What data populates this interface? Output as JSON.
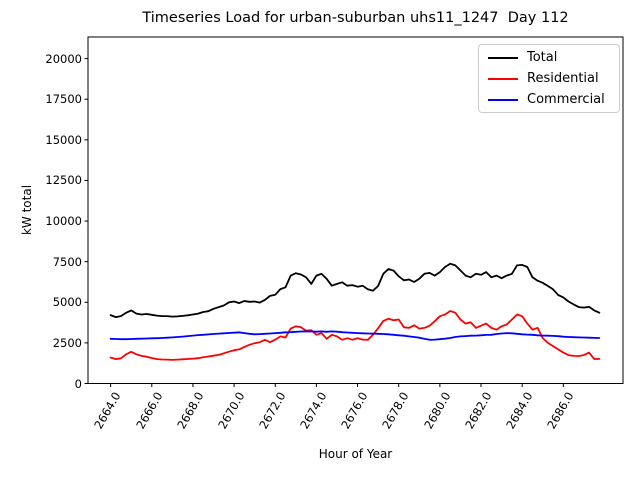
{
  "figure": {
    "title": "Timeseries Load for urban-suburban uhs11_1247  Day 112",
    "xlabel": "Hour of Year",
    "ylabel": "kW total"
  },
  "legend": {
    "entries": [
      "Total",
      "Residential",
      "Commercial"
    ]
  },
  "chart_data": {
    "type": "line",
    "title": "Timeseries Load for urban-suburban uhs11_1247  Day 112",
    "xlabel": "Hour of Year",
    "ylabel": "kW total",
    "grid": false,
    "legend_position": "upper right",
    "xlim": [
      2662.9,
      2688.9
    ],
    "ylim": [
      0,
      21330
    ],
    "xticks": {
      "values": [
        2664,
        2666,
        2668,
        2670,
        2672,
        2674,
        2676,
        2678,
        2680,
        2682,
        2684,
        2686
      ],
      "labels": [
        "2664.0",
        "2666.0",
        "2668.0",
        "2670.0",
        "2672.0",
        "2674.0",
        "2676.0",
        "2678.0",
        "2680.0",
        "2682.0",
        "2684.0",
        "2686.0"
      ]
    },
    "yticks": {
      "values": [
        0,
        2500,
        5000,
        7500,
        10000,
        12500,
        15000,
        17500,
        20000
      ],
      "labels": [
        "0",
        "2500",
        "5000",
        "7500",
        "10000",
        "12500",
        "15000",
        "17500",
        "20000"
      ]
    },
    "x": [
      2664.0,
      2664.25,
      2664.5,
      2664.75,
      2665.0,
      2665.25,
      2665.5,
      2665.75,
      2666.0,
      2666.25,
      2666.5,
      2666.75,
      2667.0,
      2667.25,
      2667.5,
      2667.75,
      2668.0,
      2668.25,
      2668.5,
      2668.75,
      2669.0,
      2669.25,
      2669.5,
      2669.75,
      2670.0,
      2670.25,
      2670.5,
      2670.75,
      2671.0,
      2671.25,
      2671.5,
      2671.75,
      2672.0,
      2672.25,
      2672.5,
      2672.75,
      2673.0,
      2673.25,
      2673.5,
      2673.75,
      2674.0,
      2674.25,
      2674.5,
      2674.75,
      2675.0,
      2675.25,
      2675.5,
      2675.75,
      2676.0,
      2676.25,
      2676.5,
      2676.75,
      2677.0,
      2677.25,
      2677.5,
      2677.75,
      2678.0,
      2678.25,
      2678.5,
      2678.75,
      2679.0,
      2679.25,
      2679.5,
      2679.75,
      2680.0,
      2680.25,
      2680.5,
      2680.75,
      2681.0,
      2681.25,
      2681.5,
      2681.75,
      2682.0,
      2682.25,
      2682.5,
      2682.75,
      2683.0,
      2683.25,
      2683.5,
      2683.75,
      2684.0,
      2684.25,
      2684.5,
      2684.75,
      2685.0,
      2685.25,
      2685.5,
      2685.75,
      2686.0,
      2686.25,
      2686.5,
      2686.75,
      2687.0,
      2687.25,
      2687.5,
      2687.75
    ],
    "series": [
      {
        "name": "Total",
        "color": "#000000",
        "values": [
          4210,
          4090,
          4150,
          4350,
          4500,
          4300,
          4250,
          4280,
          4230,
          4180,
          4150,
          4150,
          4120,
          4130,
          4160,
          4200,
          4250,
          4300,
          4400,
          4450,
          4600,
          4700,
          4800,
          5000,
          5050,
          4950,
          5080,
          5030,
          5050,
          4980,
          5150,
          5390,
          5460,
          5810,
          5920,
          6640,
          6790,
          6710,
          6540,
          6130,
          6640,
          6750,
          6440,
          6020,
          6130,
          6230,
          6020,
          6060,
          5960,
          6020,
          5800,
          5710,
          6000,
          6750,
          7050,
          6950,
          6600,
          6350,
          6400,
          6250,
          6450,
          6750,
          6810,
          6640,
          6860,
          7170,
          7375,
          7270,
          6960,
          6640,
          6540,
          6750,
          6690,
          6860,
          6540,
          6640,
          6480,
          6640,
          6750,
          7270,
          7300,
          7170,
          6540,
          6330,
          6200,
          6000,
          5800,
          5450,
          5300,
          5050,
          4870,
          4700,
          4670,
          4720,
          4500,
          4360
        ]
      },
      {
        "name": "Residential",
        "color": "#ff0000",
        "values": [
          1600,
          1500,
          1550,
          1800,
          1950,
          1800,
          1700,
          1650,
          1570,
          1500,
          1480,
          1470,
          1450,
          1470,
          1490,
          1510,
          1530,
          1560,
          1610,
          1660,
          1710,
          1760,
          1860,
          1960,
          2050,
          2100,
          2250,
          2380,
          2480,
          2540,
          2690,
          2540,
          2700,
          2900,
          2830,
          3380,
          3520,
          3460,
          3250,
          3290,
          3000,
          3100,
          2750,
          3000,
          2900,
          2690,
          2790,
          2690,
          2790,
          2700,
          2690,
          3000,
          3400,
          3850,
          3980,
          3890,
          3940,
          3460,
          3420,
          3580,
          3380,
          3420,
          3560,
          3830,
          4140,
          4250,
          4460,
          4360,
          3940,
          3690,
          3770,
          3420,
          3560,
          3690,
          3420,
          3310,
          3520,
          3630,
          3940,
          4250,
          4140,
          3690,
          3310,
          3420,
          2800,
          2500,
          2300,
          2100,
          1900,
          1750,
          1700,
          1690,
          1750,
          1900,
          1500,
          1520
        ]
      },
      {
        "name": "Commercial",
        "color": "#0000ff",
        "values": [
          2750,
          2740,
          2730,
          2730,
          2740,
          2750,
          2760,
          2770,
          2780,
          2790,
          2800,
          2820,
          2840,
          2860,
          2890,
          2920,
          2950,
          2980,
          3000,
          3020,
          3050,
          3070,
          3090,
          3110,
          3130,
          3150,
          3100,
          3060,
          3030,
          3040,
          3060,
          3080,
          3100,
          3120,
          3150,
          3160,
          3180,
          3200,
          3210,
          3200,
          3190,
          3210,
          3180,
          3210,
          3190,
          3160,
          3140,
          3120,
          3100,
          3090,
          3080,
          3070,
          3060,
          3050,
          3030,
          3000,
          2970,
          2940,
          2900,
          2860,
          2820,
          2760,
          2690,
          2700,
          2730,
          2760,
          2800,
          2860,
          2900,
          2920,
          2940,
          2950,
          2970,
          2990,
          3000,
          3050,
          3080,
          3100,
          3090,
          3060,
          3030,
          3010,
          3000,
          2970,
          2950,
          2940,
          2930,
          2910,
          2880,
          2860,
          2850,
          2840,
          2830,
          2820,
          2810,
          2800
        ]
      }
    ]
  }
}
